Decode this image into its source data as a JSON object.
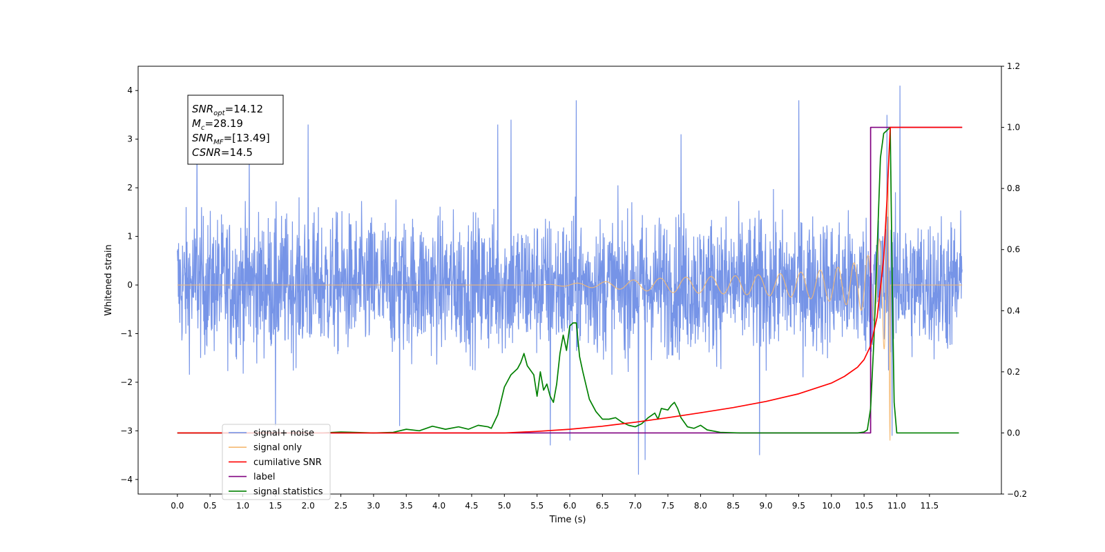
{
  "chart_data": {
    "type": "line",
    "xlabel": "Time (s)",
    "ylabel_left": "Whitened strain",
    "ylabel_right": "",
    "xlim": [
      -0.6,
      12.6
    ],
    "ylim_left": [
      -4.3,
      4.5
    ],
    "ylim_right": [
      -0.2,
      1.2
    ],
    "x_ticks": [
      "0.0",
      "0.5",
      "1.0",
      "1.5",
      "2.0",
      "2.5",
      "3.0",
      "3.5",
      "4.0",
      "4.5",
      "5.0",
      "5.5",
      "6.0",
      "6.5",
      "7.0",
      "7.5",
      "8.0",
      "8.5",
      "9.0",
      "9.5",
      "10.0",
      "10.5",
      "11.0",
      "11.5"
    ],
    "y_ticks_left": [
      "4",
      "3",
      "2",
      "1",
      "0",
      "−1",
      "−2",
      "−3",
      "−4"
    ],
    "y_ticks_right": [
      "1.2",
      "1.0",
      "0.8",
      "0.6",
      "0.4",
      "0.2",
      "0.0",
      "−0.2"
    ],
    "grid": false,
    "legend_position": "lower-left",
    "annotation": {
      "lines": [
        {
          "sym": "SNR",
          "sub": "opt",
          "value": "=14.12"
        },
        {
          "sym": "M",
          "sub": "c",
          "value": "=28.19"
        },
        {
          "sym": "SNR",
          "sub": "MF",
          "value": "=[13.49]"
        },
        {
          "sym": "CSNR",
          "sub": "",
          "value": "=14.5"
        }
      ]
    },
    "series": [
      {
        "name": "signal+ noise",
        "color": "#6f8ee6",
        "axis": "left",
        "description": "noise band roughly ±2 with spikes up to ~4.1 and down to ~-3.9"
      },
      {
        "name": "signal only",
        "color": "#f5b971",
        "axis": "left",
        "description": "chirp, amplitude growing to ~3.2 near t=10.9, then 0"
      },
      {
        "name": "cumilative SNR",
        "color": "#ff0000",
        "axis": "right",
        "x": [
          0,
          4.5,
          5.0,
          5.5,
          6.0,
          6.5,
          7.0,
          7.5,
          8.0,
          8.5,
          9.0,
          9.5,
          10.0,
          10.2,
          10.4,
          10.5,
          10.6,
          10.7,
          10.8,
          10.85,
          10.9,
          11.0,
          11.5,
          12.0
        ],
        "y": [
          0.0,
          0.0,
          0.0,
          0.005,
          0.012,
          0.022,
          0.035,
          0.05,
          0.066,
          0.083,
          0.103,
          0.128,
          0.163,
          0.185,
          0.215,
          0.24,
          0.285,
          0.38,
          0.57,
          0.76,
          1.0,
          1.0,
          1.0,
          1.0
        ]
      },
      {
        "name": "label",
        "color": "#800080",
        "axis": "right",
        "x": [
          0,
          10.6,
          10.6,
          10.9,
          10.9,
          12.0
        ],
        "y": [
          0,
          0,
          1,
          1,
          1,
          1
        ]
      },
      {
        "name": "signal statistics",
        "color": "#008000",
        "axis": "right",
        "x": [
          0,
          2.2,
          2.5,
          3.0,
          3.3,
          3.5,
          3.7,
          3.9,
          4.1,
          4.3,
          4.45,
          4.6,
          4.75,
          4.8,
          4.9,
          5.0,
          5.05,
          5.1,
          5.2,
          5.25,
          5.3,
          5.35,
          5.45,
          5.5,
          5.55,
          5.6,
          5.65,
          5.7,
          5.75,
          5.8,
          5.85,
          5.9,
          5.95,
          6.0,
          6.05,
          6.1,
          6.15,
          6.2,
          6.3,
          6.4,
          6.5,
          6.6,
          6.7,
          6.8,
          6.9,
          7.0,
          7.1,
          7.2,
          7.3,
          7.35,
          7.4,
          7.5,
          7.55,
          7.6,
          7.65,
          7.7,
          7.8,
          7.9,
          8.0,
          8.1,
          8.3,
          8.6,
          9.0,
          10.0,
          10.4,
          10.5,
          10.55,
          10.6,
          10.65,
          10.7,
          10.75,
          10.8,
          10.85,
          10.9,
          10.93,
          10.96,
          11.0,
          11.5,
          11.95
        ],
        "y": [
          0,
          0,
          0.003,
          0,
          0.002,
          0.012,
          0.007,
          0.022,
          0.012,
          0.02,
          0.012,
          0.025,
          0.02,
          0.015,
          0.06,
          0.15,
          0.17,
          0.19,
          0.21,
          0.23,
          0.26,
          0.22,
          0.19,
          0.12,
          0.2,
          0.14,
          0.16,
          0.12,
          0.1,
          0.16,
          0.26,
          0.32,
          0.27,
          0.35,
          0.36,
          0.36,
          0.25,
          0.2,
          0.11,
          0.07,
          0.045,
          0.045,
          0.05,
          0.035,
          0.025,
          0.02,
          0.03,
          0.05,
          0.065,
          0.045,
          0.08,
          0.075,
          0.09,
          0.1,
          0.08,
          0.05,
          0.02,
          0.015,
          0.025,
          0.01,
          0.002,
          0,
          0,
          0,
          0,
          0.003,
          0.01,
          0.08,
          0.3,
          0.6,
          0.9,
          0.98,
          0.99,
          1.0,
          0.5,
          0.1,
          0,
          0,
          0
        ]
      }
    ]
  }
}
